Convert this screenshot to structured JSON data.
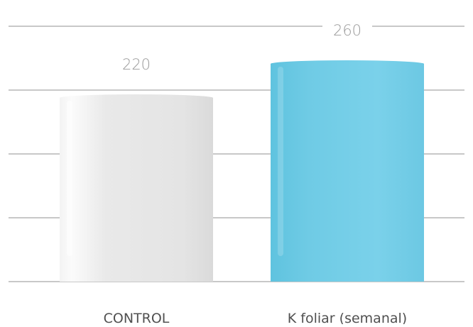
{
  "chart_data": {
    "type": "bar",
    "categories": [
      "CONTROL",
      "K foliar (semanal)"
    ],
    "values": [
      220,
      260
    ],
    "data_labels": [
      "220",
      "260"
    ],
    "ylim": [
      0,
      300
    ],
    "grid": true,
    "colors": {
      "CONTROL": "#e6e6e6",
      "K foliar (semanal)": "#75cde6",
      "grid": "#c8c8c8",
      "value_label": "#9a9a9a",
      "category_label": "#505050"
    }
  }
}
